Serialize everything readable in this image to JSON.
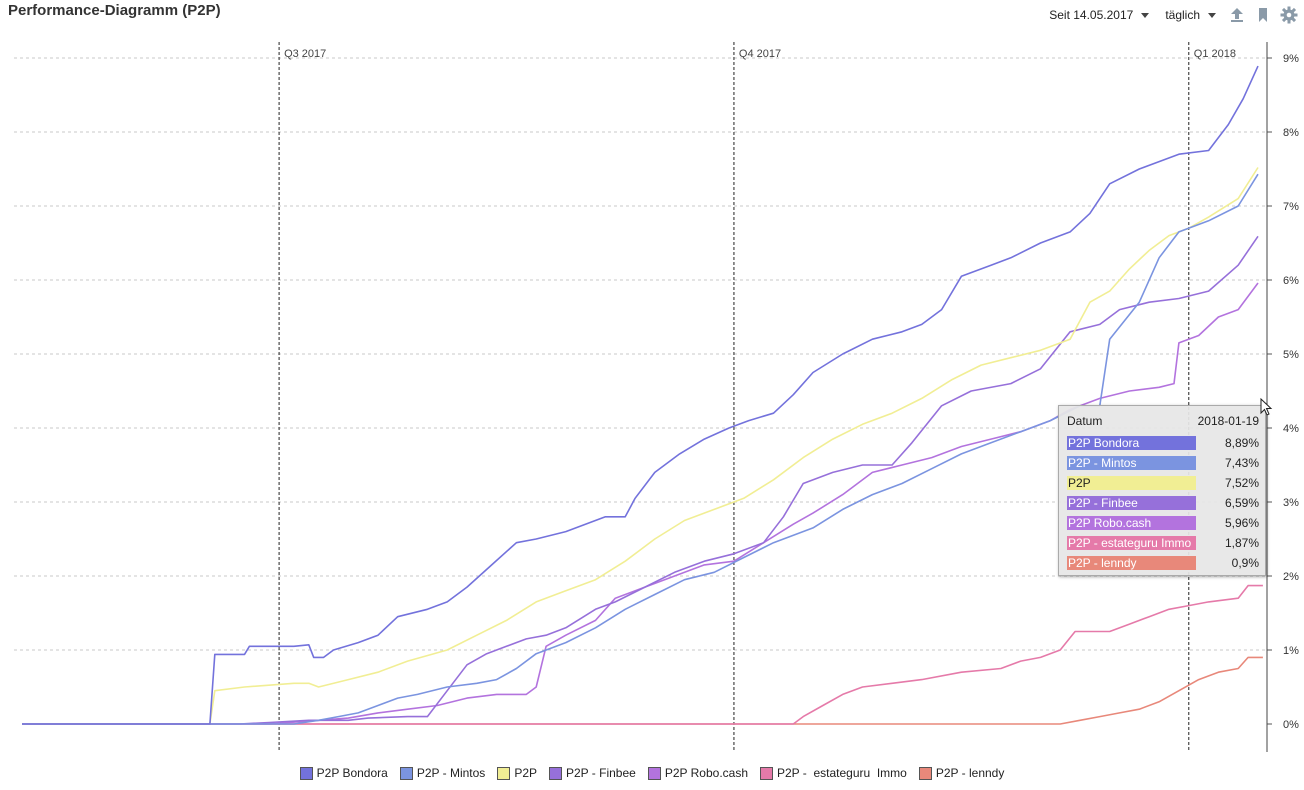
{
  "header": {
    "title": "Performance-Diagramm (P2P)",
    "period_label": "Seit 14.05.2017",
    "interval_label": "täglich",
    "icons": [
      "upload-icon",
      "bookmark-icon",
      "gear-icon"
    ]
  },
  "chart_data": {
    "type": "line",
    "y_unit": "%",
    "ylim": [
      -0.2,
      9.1
    ],
    "y_ticks": [
      "9%",
      "8%",
      "7%",
      "6%",
      "5%",
      "4%",
      "3%",
      "2%",
      "1%",
      "0%"
    ],
    "y_tick_values": [
      9,
      8,
      7,
      6,
      5,
      4,
      3,
      2,
      1,
      0
    ],
    "quarter_markers": [
      {
        "label": "Q3 2017",
        "day": 52
      },
      {
        "label": "Q4 2017",
        "day": 144
      },
      {
        "label": "Q1 2018",
        "day": 236
      }
    ],
    "x_range_days": [
      0,
      250
    ],
    "grid": true,
    "legend_position": "bottom",
    "series": [
      {
        "name": "P2P Bondora",
        "color": "#7372dc",
        "points": [
          [
            0,
            0
          ],
          [
            38,
            0
          ],
          [
            39,
            0.94
          ],
          [
            45,
            0.94
          ],
          [
            46,
            1.05
          ],
          [
            55,
            1.05
          ],
          [
            58,
            1.07
          ],
          [
            59,
            0.9
          ],
          [
            61,
            0.9
          ],
          [
            63,
            1.0
          ],
          [
            68,
            1.1
          ],
          [
            72,
            1.2
          ],
          [
            76,
            1.45
          ],
          [
            82,
            1.55
          ],
          [
            86,
            1.65
          ],
          [
            90,
            1.85
          ],
          [
            95,
            2.15
          ],
          [
            100,
            2.45
          ],
          [
            104,
            2.5
          ],
          [
            110,
            2.6
          ],
          [
            118,
            2.8
          ],
          [
            122,
            2.8
          ],
          [
            124,
            3.05
          ],
          [
            128,
            3.4
          ],
          [
            133,
            3.65
          ],
          [
            138,
            3.85
          ],
          [
            143,
            4.0
          ],
          [
            147,
            4.1
          ],
          [
            152,
            4.2
          ],
          [
            156,
            4.45
          ],
          [
            160,
            4.75
          ],
          [
            166,
            5.0
          ],
          [
            172,
            5.2
          ],
          [
            178,
            5.3
          ],
          [
            182,
            5.4
          ],
          [
            186,
            5.6
          ],
          [
            190,
            6.05
          ],
          [
            196,
            6.2
          ],
          [
            200,
            6.3
          ],
          [
            206,
            6.5
          ],
          [
            212,
            6.65
          ],
          [
            216,
            6.9
          ],
          [
            220,
            7.3
          ],
          [
            226,
            7.5
          ],
          [
            230,
            7.6
          ],
          [
            234,
            7.7
          ],
          [
            240,
            7.75
          ],
          [
            244,
            8.1
          ],
          [
            247,
            8.45
          ],
          [
            250,
            8.89
          ]
        ]
      },
      {
        "name": "P2P - Mintos",
        "color": "#7b94e0",
        "points": [
          [
            0,
            0
          ],
          [
            55,
            0
          ],
          [
            60,
            0.05
          ],
          [
            64,
            0.1
          ],
          [
            68,
            0.15
          ],
          [
            72,
            0.25
          ],
          [
            76,
            0.35
          ],
          [
            80,
            0.4
          ],
          [
            86,
            0.5
          ],
          [
            92,
            0.55
          ],
          [
            96,
            0.6
          ],
          [
            100,
            0.75
          ],
          [
            104,
            0.95
          ],
          [
            110,
            1.1
          ],
          [
            116,
            1.3
          ],
          [
            122,
            1.55
          ],
          [
            128,
            1.75
          ],
          [
            134,
            1.95
          ],
          [
            140,
            2.05
          ],
          [
            146,
            2.25
          ],
          [
            152,
            2.45
          ],
          [
            160,
            2.65
          ],
          [
            166,
            2.9
          ],
          [
            172,
            3.1
          ],
          [
            178,
            3.25
          ],
          [
            184,
            3.45
          ],
          [
            190,
            3.65
          ],
          [
            196,
            3.8
          ],
          [
            202,
            3.95
          ],
          [
            208,
            4.1
          ],
          [
            214,
            4.3
          ],
          [
            218,
            4.3
          ],
          [
            220,
            5.2
          ],
          [
            226,
            5.7
          ],
          [
            230,
            6.3
          ],
          [
            234,
            6.65
          ],
          [
            240,
            6.8
          ],
          [
            246,
            7.0
          ],
          [
            250,
            7.43
          ]
        ]
      },
      {
        "name": "P2P",
        "color": "#f1ee94",
        "points": [
          [
            0,
            0
          ],
          [
            38,
            0
          ],
          [
            39,
            0.45
          ],
          [
            45,
            0.5
          ],
          [
            55,
            0.55
          ],
          [
            58,
            0.55
          ],
          [
            60,
            0.5
          ],
          [
            66,
            0.6
          ],
          [
            72,
            0.7
          ],
          [
            78,
            0.85
          ],
          [
            86,
            1.0
          ],
          [
            92,
            1.2
          ],
          [
            98,
            1.4
          ],
          [
            104,
            1.65
          ],
          [
            110,
            1.8
          ],
          [
            116,
            1.95
          ],
          [
            122,
            2.2
          ],
          [
            128,
            2.5
          ],
          [
            134,
            2.75
          ],
          [
            140,
            2.9
          ],
          [
            146,
            3.05
          ],
          [
            152,
            3.3
          ],
          [
            158,
            3.6
          ],
          [
            164,
            3.85
          ],
          [
            170,
            4.05
          ],
          [
            176,
            4.2
          ],
          [
            182,
            4.4
          ],
          [
            188,
            4.65
          ],
          [
            194,
            4.85
          ],
          [
            200,
            4.95
          ],
          [
            206,
            5.05
          ],
          [
            212,
            5.2
          ],
          [
            216,
            5.7
          ],
          [
            220,
            5.85
          ],
          [
            224,
            6.15
          ],
          [
            228,
            6.4
          ],
          [
            232,
            6.6
          ],
          [
            236,
            6.7
          ],
          [
            240,
            6.85
          ],
          [
            246,
            7.1
          ],
          [
            250,
            7.52
          ]
        ]
      },
      {
        "name": "P2P - Finbee",
        "color": "#9670da",
        "points": [
          [
            0,
            0
          ],
          [
            44,
            0
          ],
          [
            50,
            0.02
          ],
          [
            58,
            0.05
          ],
          [
            66,
            0.05
          ],
          [
            70,
            0.08
          ],
          [
            78,
            0.1
          ],
          [
            82,
            0.1
          ],
          [
            86,
            0.45
          ],
          [
            90,
            0.8
          ],
          [
            94,
            0.95
          ],
          [
            98,
            1.05
          ],
          [
            102,
            1.15
          ],
          [
            106,
            1.2
          ],
          [
            110,
            1.3
          ],
          [
            116,
            1.55
          ],
          [
            120,
            1.65
          ],
          [
            126,
            1.85
          ],
          [
            132,
            2.05
          ],
          [
            138,
            2.2
          ],
          [
            144,
            2.3
          ],
          [
            150,
            2.45
          ],
          [
            154,
            2.8
          ],
          [
            158,
            3.25
          ],
          [
            164,
            3.4
          ],
          [
            170,
            3.5
          ],
          [
            176,
            3.5
          ],
          [
            180,
            3.8
          ],
          [
            186,
            4.3
          ],
          [
            192,
            4.5
          ],
          [
            200,
            4.6
          ],
          [
            206,
            4.8
          ],
          [
            212,
            5.3
          ],
          [
            218,
            5.4
          ],
          [
            222,
            5.6
          ],
          [
            228,
            5.7
          ],
          [
            234,
            5.75
          ],
          [
            240,
            5.85
          ],
          [
            246,
            6.2
          ],
          [
            250,
            6.59
          ]
        ]
      },
      {
        "name": "P2P Robo.cash",
        "color": "#b373de",
        "points": [
          [
            0,
            0
          ],
          [
            50,
            0
          ],
          [
            60,
            0.05
          ],
          [
            66,
            0.08
          ],
          [
            72,
            0.15
          ],
          [
            78,
            0.2
          ],
          [
            84,
            0.25
          ],
          [
            90,
            0.35
          ],
          [
            96,
            0.4
          ],
          [
            102,
            0.4
          ],
          [
            104,
            0.5
          ],
          [
            106,
            1.05
          ],
          [
            110,
            1.2
          ],
          [
            116,
            1.4
          ],
          [
            120,
            1.7
          ],
          [
            126,
            1.85
          ],
          [
            132,
            2.0
          ],
          [
            138,
            2.15
          ],
          [
            144,
            2.2
          ],
          [
            150,
            2.45
          ],
          [
            156,
            2.7
          ],
          [
            160,
            2.85
          ],
          [
            166,
            3.1
          ],
          [
            172,
            3.4
          ],
          [
            178,
            3.5
          ],
          [
            184,
            3.6
          ],
          [
            190,
            3.75
          ],
          [
            196,
            3.85
          ],
          [
            202,
            3.95
          ],
          [
            208,
            4.1
          ],
          [
            212,
            4.25
          ],
          [
            218,
            4.4
          ],
          [
            224,
            4.5
          ],
          [
            230,
            4.55
          ],
          [
            233,
            4.6
          ],
          [
            234,
            5.15
          ],
          [
            238,
            5.25
          ],
          [
            242,
            5.5
          ],
          [
            246,
            5.6
          ],
          [
            250,
            5.96
          ]
        ]
      },
      {
        "name": "P2P -  estateguru  Immo",
        "color": "#e57aa9",
        "points": [
          [
            0,
            0
          ],
          [
            156,
            0
          ],
          [
            158,
            0.1
          ],
          [
            162,
            0.25
          ],
          [
            166,
            0.4
          ],
          [
            170,
            0.5
          ],
          [
            176,
            0.55
          ],
          [
            182,
            0.6
          ],
          [
            190,
            0.7
          ],
          [
            198,
            0.75
          ],
          [
            202,
            0.85
          ],
          [
            206,
            0.9
          ],
          [
            210,
            1.0
          ],
          [
            213,
            1.25
          ],
          [
            220,
            1.25
          ],
          [
            224,
            1.35
          ],
          [
            228,
            1.45
          ],
          [
            232,
            1.55
          ],
          [
            236,
            1.6
          ],
          [
            240,
            1.65
          ],
          [
            246,
            1.7
          ],
          [
            248,
            1.87
          ],
          [
            251,
            1.87
          ]
        ]
      },
      {
        "name": "P2P - lenndy",
        "color": "#e8887a",
        "points": [
          [
            0,
            0
          ],
          [
            210,
            0
          ],
          [
            214,
            0.05
          ],
          [
            218,
            0.1
          ],
          [
            222,
            0.15
          ],
          [
            226,
            0.2
          ],
          [
            230,
            0.3
          ],
          [
            234,
            0.45
          ],
          [
            238,
            0.6
          ],
          [
            242,
            0.7
          ],
          [
            246,
            0.75
          ],
          [
            248,
            0.9
          ],
          [
            251,
            0.9
          ]
        ]
      }
    ]
  },
  "tooltip": {
    "header_label": "Datum",
    "date": "2018-01-19",
    "rows": [
      {
        "name": "P2P Bondora",
        "value": "8,89%",
        "color": "#7372dc",
        "text_color": "#ffffff"
      },
      {
        "name": "P2P - Mintos",
        "value": "7,43%",
        "color": "#7b94e0",
        "text_color": "#ffffff"
      },
      {
        "name": "P2P",
        "value": "7,52%",
        "color": "#f1ee94",
        "text_color": "#222222"
      },
      {
        "name": "P2P - Finbee",
        "value": "6,59%",
        "color": "#9670da",
        "text_color": "#ffffff"
      },
      {
        "name": "P2P Robo.cash",
        "value": "5,96%",
        "color": "#b373de",
        "text_color": "#ffffff"
      },
      {
        "name": "P2P -  estateguru  Immo",
        "value": "1,87%",
        "color": "#e57aa9",
        "text_color": "#ffffff"
      },
      {
        "name": "P2P - lenndy",
        "value": "0,9%",
        "color": "#e8887a",
        "text_color": "#ffffff"
      }
    ]
  },
  "legend": [
    {
      "label": "P2P Bondora",
      "color": "#7372dc"
    },
    {
      "label": "P2P - Mintos",
      "color": "#7b94e0"
    },
    {
      "label": "P2P",
      "color": "#f1ee94"
    },
    {
      "label": "P2P - Finbee",
      "color": "#9670da"
    },
    {
      "label": "P2P Robo.cash",
      "color": "#b373de"
    },
    {
      "label": "P2P -  estateguru  Immo",
      "color": "#e57aa9"
    },
    {
      "label": "P2P - lenndy",
      "color": "#e8887a"
    }
  ]
}
